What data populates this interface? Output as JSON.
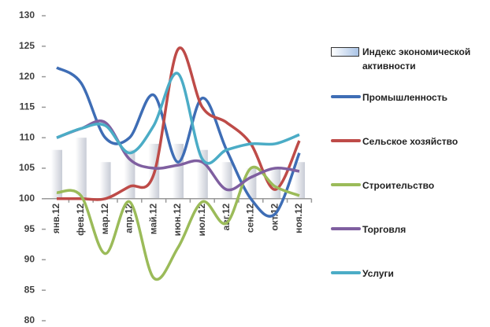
{
  "chart_data": {
    "type": "bar_line",
    "categories": [
      "янв.12",
      "фев.12",
      "мар.12",
      "апр.12",
      "май.12",
      "июн.12",
      "июл.12",
      "авг.12",
      "сен.12",
      "окт.12",
      "ноя.12"
    ],
    "ylim": [
      80,
      130
    ],
    "yticks": [
      80,
      85,
      90,
      95,
      100,
      105,
      110,
      115,
      120,
      125,
      130
    ],
    "baseline": 100,
    "bar_series": {
      "name": "Индекс экономической активности",
      "color": "#dde3ee",
      "values": [
        108,
        110,
        106,
        108,
        109,
        109,
        108,
        106,
        105,
        105,
        106
      ]
    },
    "series": [
      {
        "name": "Промышленность",
        "color": "#3e6db5",
        "values": [
          121.5,
          119,
          110,
          110,
          117,
          106,
          116.5,
          108,
          100,
          97.5,
          107.5
        ]
      },
      {
        "name": "Сельское хозяйство",
        "color": "#be4b48",
        "values": [
          100,
          100,
          100,
          102,
          104,
          124.5,
          115,
          112.5,
          109,
          101.5,
          109.5
        ]
      },
      {
        "name": "Строительство",
        "color": "#9bbb59",
        "values": [
          101,
          100.5,
          91,
          99.5,
          87,
          92,
          99.5,
          96,
          105,
          102,
          100.5
        ]
      },
      {
        "name": "Торговля",
        "color": "#7f5fa0",
        "values": [
          110,
          111.5,
          112.5,
          106.5,
          105,
          105.5,
          106,
          101.5,
          103.5,
          105,
          104.5
        ]
      },
      {
        "name": "Услуги",
        "color": "#4bacc6",
        "values": [
          110,
          111.5,
          112,
          107.5,
          112,
          120.5,
          106.5,
          108,
          109,
          109,
          110.5
        ]
      }
    ],
    "smooth": true
  }
}
